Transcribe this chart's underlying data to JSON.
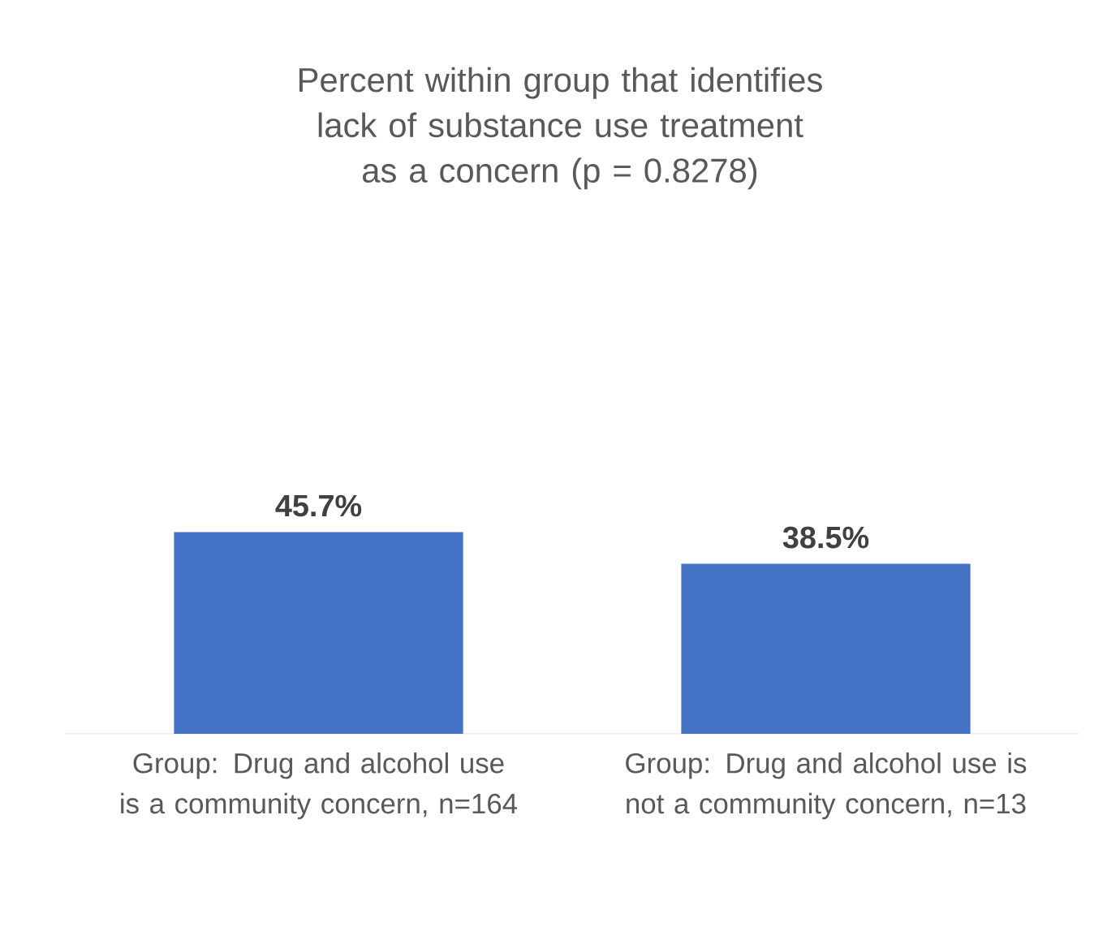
{
  "chart_data": {
    "type": "bar",
    "title": "Percent within group that identifies lack of substance use treatment as a concern (p = 0.8278)",
    "categories": [
      "Group: Drug and alcohol use is a community concern, n=164",
      "Group: Drug and alcohol use is not a community concern, n=13"
    ],
    "values": [
      45.7,
      38.5
    ],
    "value_labels": [
      "45.7%",
      "38.5%"
    ],
    "color": "#4472c4"
  }
}
